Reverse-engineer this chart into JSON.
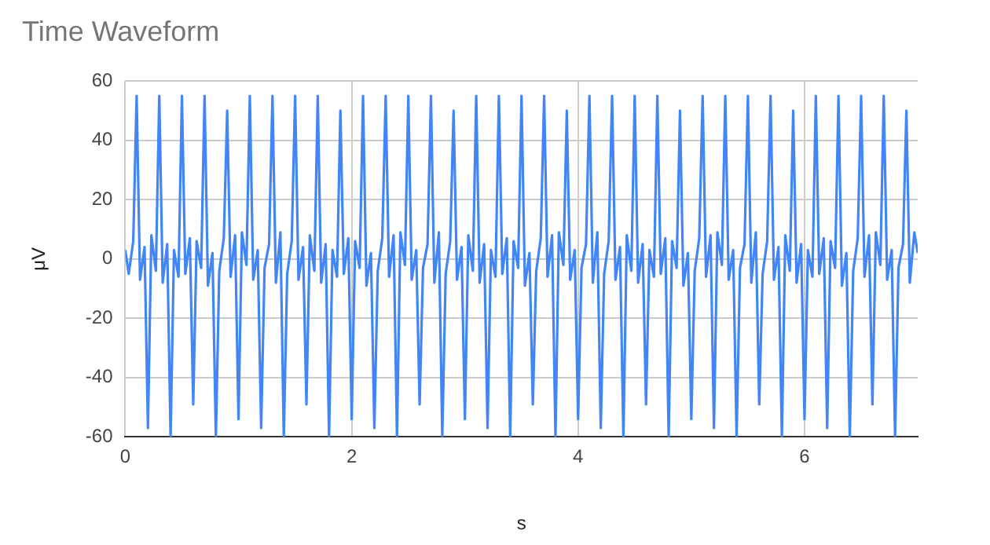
{
  "chart_data": {
    "type": "line",
    "title": "Time Waveform",
    "xlabel": "s",
    "ylabel": "μV",
    "xlim": [
      0,
      7
    ],
    "xticks": [
      0,
      2,
      4,
      6
    ],
    "ylim": [
      -60,
      60
    ],
    "yticks": [
      -60,
      -40,
      -20,
      0,
      20,
      40,
      60
    ],
    "grid": true,
    "legend": false,
    "marker": "none",
    "line_style": "solid",
    "x": [
      0,
      0.03,
      0.07,
      0.1,
      0.13,
      0.17,
      0.2,
      0.23,
      0.27,
      0.3,
      0.33,
      0.37,
      0.4,
      0.43,
      0.47,
      0.5,
      0.53,
      0.57,
      0.6,
      0.63,
      0.67,
      0.7,
      0.73,
      0.77,
      0.8,
      0.83,
      0.87,
      0.9,
      0.93,
      0.97,
      1.0,
      1.03,
      1.07,
      1.1,
      1.13,
      1.17,
      1.2,
      1.23,
      1.27,
      1.3,
      1.33,
      1.37,
      1.4,
      1.43,
      1.47,
      1.5,
      1.53,
      1.57,
      1.6,
      1.63,
      1.67,
      1.7,
      1.73,
      1.77,
      1.8,
      1.83,
      1.87,
      1.9,
      1.93,
      1.97,
      2.0,
      2.03,
      2.07,
      2.1,
      2.13,
      2.17,
      2.2,
      2.23,
      2.27,
      2.3,
      2.33,
      2.37,
      2.4,
      2.43,
      2.47,
      2.5,
      2.53,
      2.57,
      2.6,
      2.63,
      2.67,
      2.7,
      2.73,
      2.77,
      2.8,
      2.83,
      2.87,
      2.9,
      2.93,
      2.97,
      3.0,
      3.03,
      3.07,
      3.1,
      3.13,
      3.17,
      3.2,
      3.23,
      3.27,
      3.3,
      3.33,
      3.37,
      3.4,
      3.43,
      3.47,
      3.5,
      3.53,
      3.57,
      3.6,
      3.63,
      3.67,
      3.7,
      3.73,
      3.77,
      3.8,
      3.83,
      3.87,
      3.9,
      3.93,
      3.97,
      4.0,
      4.03,
      4.07,
      4.1,
      4.13,
      4.17,
      4.2,
      4.23,
      4.27,
      4.3,
      4.33,
      4.37,
      4.4,
      4.43,
      4.47,
      4.5,
      4.53,
      4.57,
      4.6,
      4.63,
      4.67,
      4.7,
      4.73,
      4.77,
      4.8,
      4.83,
      4.87,
      4.9,
      4.93,
      4.97,
      5.0,
      5.03,
      5.07,
      5.1,
      5.13,
      5.17,
      5.2,
      5.23,
      5.27,
      5.3,
      5.33,
      5.37,
      5.4,
      5.43,
      5.47,
      5.5,
      5.53,
      5.57,
      5.6,
      5.63,
      5.67,
      5.7,
      5.73,
      5.77,
      5.8,
      5.83,
      5.87,
      5.9,
      5.93,
      5.97,
      6.0,
      6.03,
      6.07,
      6.1,
      6.13,
      6.17,
      6.2,
      6.23,
      6.27,
      6.3,
      6.33,
      6.37,
      6.4,
      6.43,
      6.47,
      6.5,
      6.53,
      6.57,
      6.6,
      6.63,
      6.67,
      6.7,
      6.73,
      6.77,
      6.8,
      6.83,
      6.87,
      6.9,
      6.93,
      6.97,
      7.0
    ],
    "series": [
      {
        "color": "#4285f4",
        "values": [
          3,
          -5,
          6,
          55,
          -7,
          4,
          -57,
          8,
          -4,
          55,
          -8,
          5,
          -60,
          3,
          -6,
          55,
          -5,
          7,
          -49,
          6,
          -3,
          55,
          -9,
          2,
          -60,
          -4,
          7,
          50,
          -6,
          8,
          -54,
          9,
          -2,
          55,
          -7,
          3,
          -57,
          -3,
          5,
          55,
          -8,
          9,
          -60,
          -5,
          6,
          55,
          -7,
          4,
          -49,
          8,
          -4,
          55,
          -8,
          5,
          -60,
          3,
          -6,
          50,
          -5,
          7,
          -54,
          6,
          -3,
          55,
          -9,
          2,
          -57,
          -4,
          7,
          55,
          -6,
          8,
          -60,
          9,
          -2,
          55,
          -7,
          3,
          -49,
          -3,
          5,
          55,
          -8,
          9,
          -60,
          -5,
          6,
          50,
          -7,
          4,
          -54,
          8,
          -4,
          55,
          -8,
          5,
          -57,
          3,
          -6,
          55,
          -5,
          7,
          -60,
          6,
          -3,
          55,
          -9,
          2,
          -49,
          -4,
          7,
          55,
          -6,
          8,
          -60,
          9,
          -2,
          50,
          -7,
          3,
          -54,
          -3,
          5,
          55,
          -8,
          9,
          -57,
          -5,
          6,
          55,
          -7,
          4,
          -60,
          8,
          -4,
          55,
          -8,
          5,
          -49,
          3,
          -6,
          55,
          -5,
          7,
          -60,
          6,
          -3,
          50,
          -9,
          2,
          -54,
          -4,
          7,
          55,
          -6,
          8,
          -57,
          9,
          -2,
          55,
          -7,
          3,
          -60,
          -3,
          5,
          55,
          -8,
          9,
          -49,
          -5,
          6,
          55,
          -7,
          4,
          -60,
          8,
          -4,
          50,
          -8,
          5,
          -54,
          3,
          -6,
          55,
          -5,
          7,
          -57,
          6,
          -3,
          55,
          -9,
          2,
          -60,
          -4,
          7,
          55,
          -6,
          8,
          -49,
          9,
          -2,
          55,
          -7,
          3,
          -60,
          -3,
          5,
          50,
          -8,
          9,
          2
        ]
      }
    ]
  }
}
